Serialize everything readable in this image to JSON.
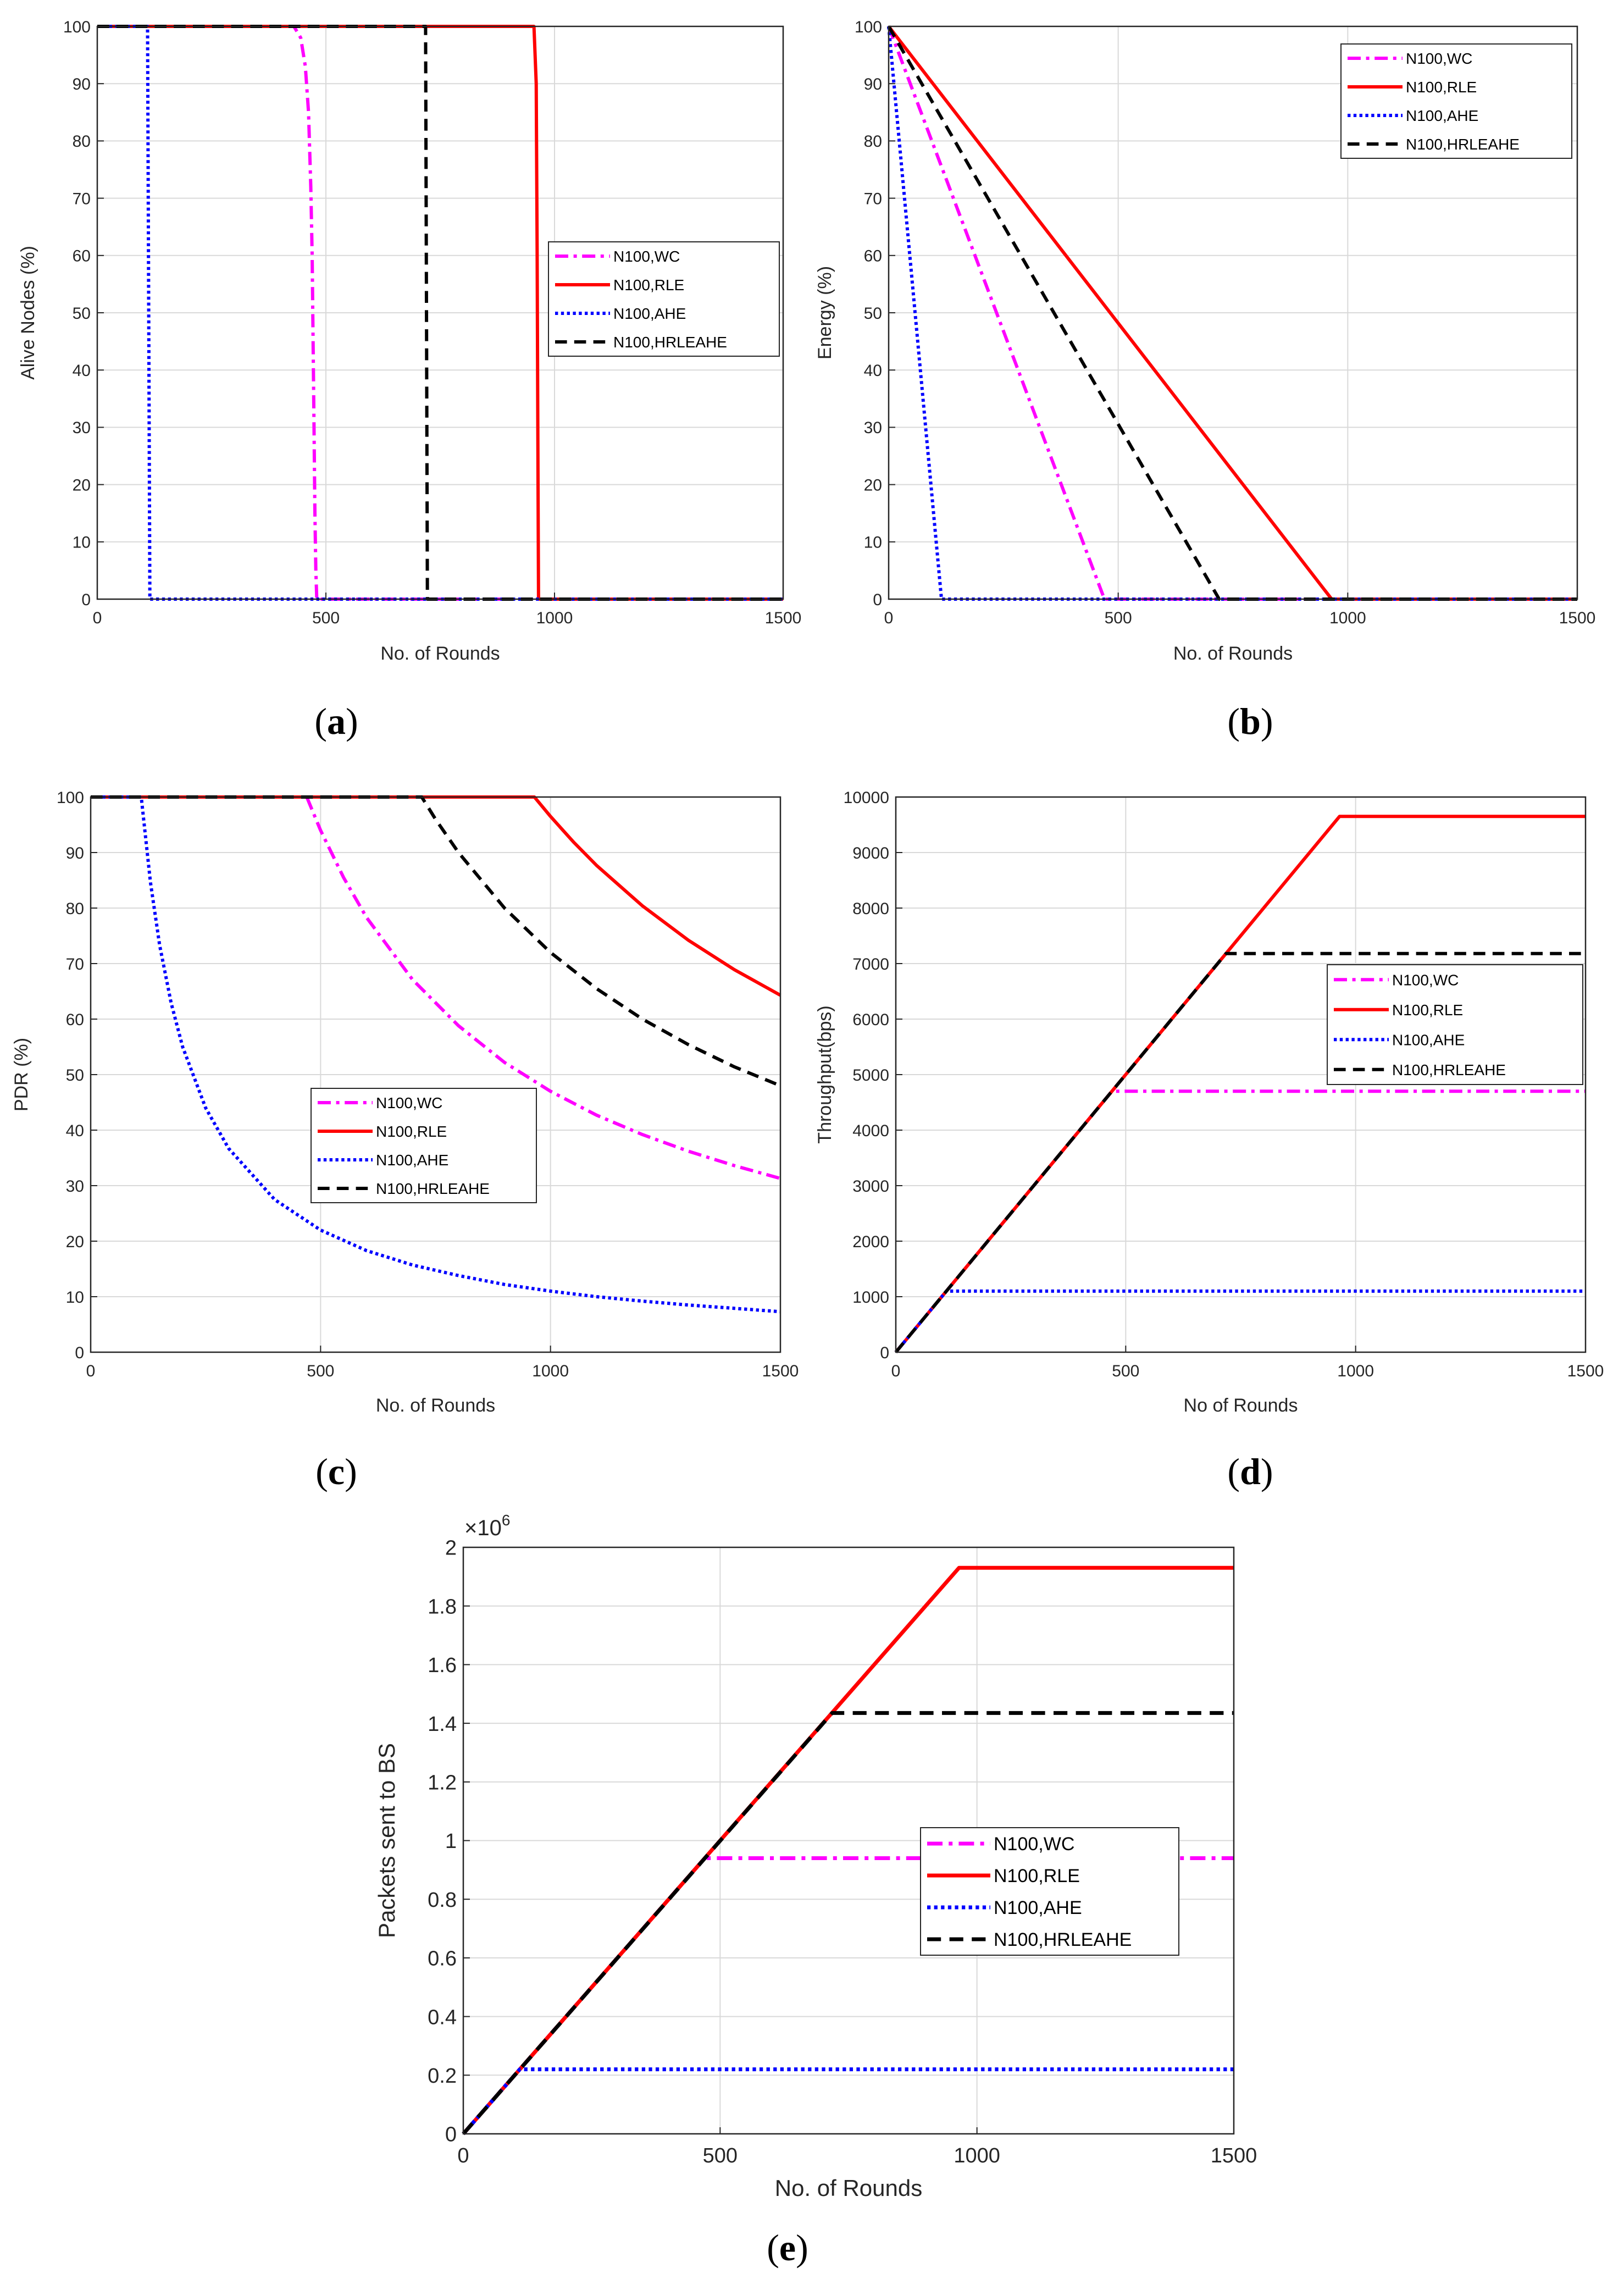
{
  "colors": {
    "WC": "#ff00ff",
    "RLE": "#ff0000",
    "AHE": "#0000ff",
    "HRLEAHE": "#000000",
    "grid": "#d9d9d9",
    "axis": "#262626"
  },
  "chart_data": [
    {
      "id": "a",
      "type": "line",
      "caption": {
        "open": "(",
        "letter": "a",
        "close": ")"
      },
      "xlabel": "No. of Rounds",
      "ylabel": "Alive Nodes (%)",
      "xlim": [
        0,
        1500
      ],
      "ylim": [
        0,
        100
      ],
      "xticks": [
        "0",
        "500",
        "1000",
        "1500"
      ],
      "yticks": [
        "0",
        "10",
        "20",
        "30",
        "40",
        "50",
        "60",
        "70",
        "80",
        "90",
        "100"
      ],
      "legend_position": "center-right",
      "series": [
        {
          "name": "N100,WC",
          "key": "WC",
          "style": "dashdot",
          "x": [
            0,
            430,
            445,
            455,
            462,
            467,
            470,
            472,
            474,
            476,
            478,
            480,
            1500
          ],
          "y": [
            100,
            100,
            98,
            93,
            85,
            72,
            60,
            45,
            30,
            15,
            5,
            0,
            0
          ]
        },
        {
          "name": "N100,RLE",
          "key": "RLE",
          "style": "solid",
          "x": [
            0,
            955,
            960,
            962,
            964,
            965,
            1500
          ],
          "y": [
            100,
            100,
            90,
            60,
            20,
            0,
            0
          ]
        },
        {
          "name": "N100,AHE",
          "key": "AHE",
          "style": "dotted",
          "x": [
            0,
            110,
            115,
            1500
          ],
          "y": [
            100,
            100,
            0,
            0
          ]
        },
        {
          "name": "N100,HRLEAHE",
          "key": "HRLEAHE",
          "style": "dashed",
          "x": [
            0,
            718,
            722,
            1500
          ],
          "y": [
            100,
            100,
            0,
            0
          ]
        }
      ]
    },
    {
      "id": "b",
      "type": "line",
      "caption": {
        "open": "(",
        "letter": "b",
        "close": ")"
      },
      "xlabel": "No. of Rounds",
      "ylabel": "Energy (%)",
      "xlim": [
        0,
        1500
      ],
      "ylim": [
        0,
        100
      ],
      "xticks": [
        "0",
        "500",
        "1000",
        "1500"
      ],
      "yticks": [
        "0",
        "10",
        "20",
        "30",
        "40",
        "50",
        "60",
        "70",
        "80",
        "90",
        "100"
      ],
      "legend_position": "top-right",
      "series": [
        {
          "name": "N100,WC",
          "key": "WC",
          "style": "dashdot",
          "x": [
            0,
            470,
            1500
          ],
          "y": [
            100,
            0,
            0
          ]
        },
        {
          "name": "N100,RLE",
          "key": "RLE",
          "style": "solid",
          "x": [
            0,
            965,
            1500
          ],
          "y": [
            100,
            0,
            0
          ]
        },
        {
          "name": "N100,AHE",
          "key": "AHE",
          "style": "dotted",
          "x": [
            0,
            115,
            1500
          ],
          "y": [
            100,
            0,
            0
          ]
        },
        {
          "name": "N100,HRLEAHE",
          "key": "HRLEAHE",
          "style": "dashed",
          "x": [
            0,
            720,
            1500
          ],
          "y": [
            100,
            0,
            0
          ]
        }
      ]
    },
    {
      "id": "c",
      "type": "line",
      "caption": {
        "open": "(",
        "letter": "c",
        "close": ")"
      },
      "xlabel": "No. of Rounds",
      "ylabel": "PDR (%)",
      "xlim": [
        0,
        1500
      ],
      "ylim": [
        0,
        100
      ],
      "xticks": [
        "0",
        "500",
        "1000",
        "1500"
      ],
      "yticks": [
        "0",
        "10",
        "20",
        "30",
        "40",
        "50",
        "60",
        "70",
        "80",
        "90",
        "100"
      ],
      "legend_position": "center",
      "series": [
        {
          "name": "N100,WC",
          "key": "WC",
          "style": "dashdot",
          "x": [
            0,
            470,
            500,
            550,
            600,
            700,
            800,
            900,
            1000,
            1100,
            1200,
            1300,
            1400,
            1500
          ],
          "y": [
            100,
            100,
            94,
            85.5,
            78.3,
            67.1,
            58.8,
            52.2,
            47,
            42.7,
            39.2,
            36.2,
            33.6,
            31.3
          ]
        },
        {
          "name": "N100,RLE",
          "key": "RLE",
          "style": "solid",
          "x": [
            0,
            965,
            1000,
            1050,
            1100,
            1200,
            1300,
            1400,
            1500
          ],
          "y": [
            100,
            100,
            96.5,
            91.9,
            87.7,
            80.4,
            74.2,
            68.9,
            64.3
          ]
        },
        {
          "name": "N100,AHE",
          "key": "AHE",
          "style": "dotted",
          "x": [
            0,
            110,
            130,
            150,
            175,
            200,
            250,
            300,
            400,
            500,
            600,
            700,
            800,
            900,
            1000,
            1100,
            1200,
            1300,
            1400,
            1500
          ],
          "y": [
            100,
            100,
            84.6,
            73.3,
            62.9,
            55,
            44,
            36.7,
            27.5,
            22,
            18.3,
            15.7,
            13.8,
            12.2,
            11,
            10,
            9.2,
            8.5,
            7.9,
            7.3
          ]
        },
        {
          "name": "N100,HRLEAHE",
          "key": "HRLEAHE",
          "style": "dashed",
          "x": [
            0,
            720,
            750,
            800,
            900,
            1000,
            1100,
            1200,
            1300,
            1400,
            1500
          ],
          "y": [
            100,
            100,
            96,
            90,
            80,
            72,
            65.5,
            60,
            55.4,
            51.4,
            48
          ]
        }
      ]
    },
    {
      "id": "d",
      "type": "line",
      "caption": {
        "open": "(",
        "letter": "d",
        "close": ")"
      },
      "xlabel": "No of Rounds",
      "ylabel": "Throughput(bps)",
      "xlim": [
        0,
        1500
      ],
      "ylim": [
        0,
        10000
      ],
      "xticks": [
        "0",
        "500",
        "1000",
        "1500"
      ],
      "yticks": [
        "0",
        "1000",
        "2000",
        "3000",
        "4000",
        "5000",
        "6000",
        "7000",
        "8000",
        "9000",
        "10000"
      ],
      "legend_position": "center-right",
      "series": [
        {
          "name": "N100,WC",
          "key": "WC",
          "style": "dashdot",
          "x": [
            0,
            470,
            1500
          ],
          "y": [
            0,
            4700,
            4700
          ]
        },
        {
          "name": "N100,RLE",
          "key": "RLE",
          "style": "solid",
          "x": [
            0,
            965,
            1500
          ],
          "y": [
            0,
            9650,
            9650
          ]
        },
        {
          "name": "N100,AHE",
          "key": "AHE",
          "style": "dotted",
          "x": [
            0,
            110,
            1500
          ],
          "y": [
            0,
            1100,
            1100
          ]
        },
        {
          "name": "N100,HRLEAHE",
          "key": "HRLEAHE",
          "style": "dashed",
          "x": [
            0,
            718,
            1500
          ],
          "y": [
            0,
            7180,
            7180
          ]
        }
      ]
    },
    {
      "id": "e",
      "type": "line",
      "caption": {
        "open": "(",
        "letter": "e",
        "close": ")"
      },
      "xlabel": "No. of Rounds",
      "ylabel": "Packets sent to BS",
      "multiplier": {
        "base": "×10",
        "exp": "6"
      },
      "xlim": [
        0,
        1500
      ],
      "ylim": [
        0,
        2
      ],
      "xticks": [
        "0",
        "500",
        "1000",
        "1500"
      ],
      "yticks": [
        "0",
        "0.2",
        "0.4",
        "0.6",
        "0.8",
        "1",
        "1.2",
        "1.4",
        "1.6",
        "1.8",
        "2"
      ],
      "legend_position": "center-right",
      "series": [
        {
          "name": "N100,WC",
          "key": "WC",
          "style": "dashdot",
          "x": [
            0,
            470,
            1500
          ],
          "y": [
            0,
            0.94,
            0.94
          ]
        },
        {
          "name": "N100,RLE",
          "key": "RLE",
          "style": "solid",
          "x": [
            0,
            965,
            1500
          ],
          "y": [
            0,
            1.93,
            1.93
          ]
        },
        {
          "name": "N100,AHE",
          "key": "AHE",
          "style": "dotted",
          "x": [
            0,
            110,
            1500
          ],
          "y": [
            0,
            0.22,
            0.22
          ]
        },
        {
          "name": "N100,HRLEAHE",
          "key": "HRLEAHE",
          "style": "dashed",
          "x": [
            0,
            718,
            1500
          ],
          "y": [
            0,
            1.435,
            1.435
          ]
        }
      ]
    }
  ]
}
